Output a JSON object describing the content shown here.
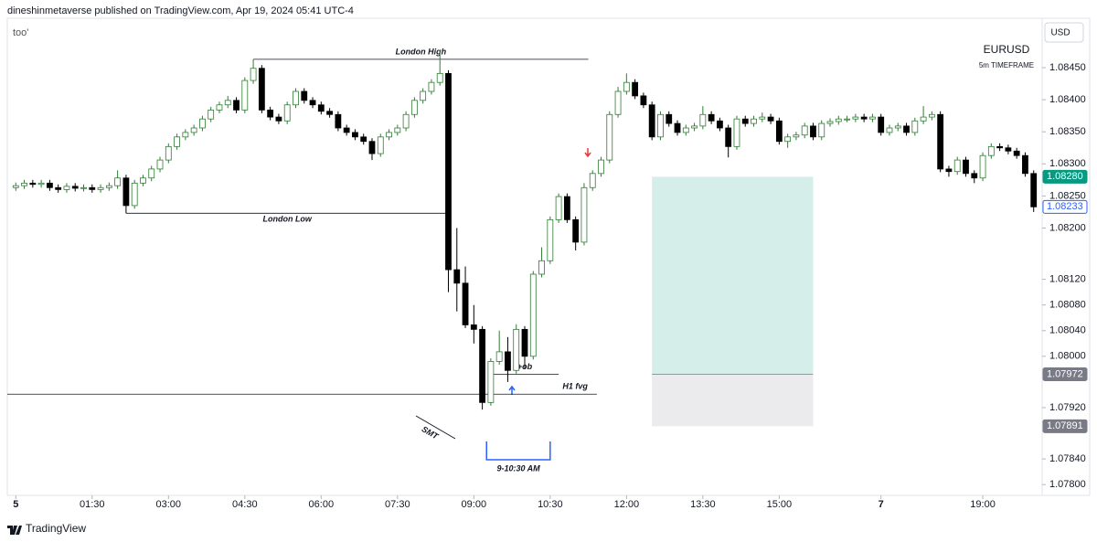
{
  "header": {
    "text": "dineshinmetaverse published on TradingView.com, Apr 19, 2024 05:41 UTC-4"
  },
  "footer": {
    "brand": "TradingView"
  },
  "chart_data": {
    "type": "candlestick",
    "indicator": "too'",
    "symbol": "EURUSD",
    "subtitle": "5m TIMEFRAME",
    "currency": "USD",
    "up_color": "#ffffff",
    "up_border": "#2e7d32",
    "down_color": "#000000",
    "xlim": [
      -10,
      1210
    ],
    "ylim": [
      1.07786,
      1.08527
    ],
    "xticks": [
      {
        "value": 0,
        "label": "5"
      },
      {
        "value": 90,
        "label": "01:30"
      },
      {
        "value": 180,
        "label": "03:00"
      },
      {
        "value": 270,
        "label": "04:30"
      },
      {
        "value": 360,
        "label": "06:00"
      },
      {
        "value": 450,
        "label": "07:30"
      },
      {
        "value": 540,
        "label": "09:00"
      },
      {
        "value": 630,
        "label": "10:30"
      },
      {
        "value": 720,
        "label": "12:00"
      },
      {
        "value": 810,
        "label": "13:30"
      },
      {
        "value": 900,
        "label": "15:00"
      },
      {
        "value": 1020,
        "label": "7"
      },
      {
        "value": 1140,
        "label": "19:00"
      }
    ],
    "yticks": [
      {
        "value": 1.0845,
        "label": "1.08450"
      },
      {
        "value": 1.084,
        "label": "1.08400"
      },
      {
        "value": 1.0835,
        "label": "1.08350"
      },
      {
        "value": 1.083,
        "label": "1.08300"
      },
      {
        "value": 1.0825,
        "label": "1.08250"
      },
      {
        "value": 1.082,
        "label": "1.08200"
      },
      {
        "value": 1.0812,
        "label": "1.08120"
      },
      {
        "value": 1.0808,
        "label": "1.08080"
      },
      {
        "value": 1.0804,
        "label": "1.08040"
      },
      {
        "value": 1.08,
        "label": "1.08000"
      },
      {
        "value": 1.0792,
        "label": "1.07920"
      },
      {
        "value": 1.0784,
        "label": "1.07840"
      },
      {
        "value": 1.078,
        "label": "1.07800"
      }
    ],
    "x": [
      0,
      10,
      20,
      30,
      40,
      50,
      60,
      70,
      80,
      90,
      100,
      110,
      120,
      130,
      140,
      150,
      160,
      170,
      180,
      190,
      200,
      210,
      220,
      230,
      240,
      250,
      260,
      270,
      280,
      290,
      300,
      310,
      320,
      330,
      340,
      350,
      360,
      370,
      380,
      390,
      400,
      410,
      420,
      430,
      440,
      450,
      460,
      470,
      480,
      490,
      500,
      510,
      520,
      530,
      540,
      550,
      560,
      570,
      580,
      590,
      600,
      610,
      620,
      630,
      640,
      650,
      660,
      670,
      680,
      690,
      700,
      710,
      720,
      730,
      740,
      750,
      760,
      770,
      780,
      790,
      800,
      810,
      820,
      830,
      840,
      850,
      860,
      870,
      880,
      890,
      900,
      910,
      920,
      930,
      940,
      950,
      960,
      970,
      980,
      990,
      1000,
      1010,
      1020,
      1030,
      1040,
      1050,
      1060,
      1070,
      1080,
      1090,
      1100,
      1110,
      1120,
      1130,
      1140,
      1150,
      1160,
      1170,
      1180,
      1190,
      1200
    ],
    "open": [
      1.08263,
      1.08266,
      1.0827,
      1.08268,
      1.0827,
      1.08263,
      1.0826,
      1.08265,
      1.08262,
      1.08263,
      1.0826,
      1.08263,
      1.08266,
      1.08278,
      1.08235,
      1.0827,
      1.08278,
      1.08292,
      1.08306,
      1.08327,
      1.08342,
      1.08349,
      1.08356,
      1.0837,
      1.08384,
      1.08392,
      1.08399,
      1.08384,
      1.0843,
      1.08449,
      1.08384,
      1.08373,
      1.08367,
      1.08392,
      1.08413,
      1.08399,
      1.08392,
      1.08382,
      1.08377,
      1.08356,
      1.08349,
      1.08342,
      1.08335,
      1.08316,
      1.08342,
      1.08349,
      1.08356,
      1.08377,
      1.08399,
      1.08413,
      1.08427,
      1.08441,
      1.08135,
      1.08114,
      1.08049,
      1.08042,
      1.07928,
      1.07992,
      1.08007,
      1.07978,
      1.08042,
      1.08,
      1.08128,
      1.08149,
      1.08213,
      1.08249,
      1.08213,
      1.08178,
      1.08263,
      1.08285,
      1.08306,
      1.08377,
      1.08413,
      1.08427,
      1.08406,
      1.08392,
      1.08342,
      1.08377,
      1.08363,
      1.08349,
      1.08356,
      1.08359,
      1.08377,
      1.08367,
      1.08356,
      1.08327,
      1.0837,
      1.08363,
      1.0837,
      1.08373,
      1.08367,
      1.08335,
      1.08342,
      1.08345,
      1.08359,
      1.08342,
      1.08363,
      1.08366,
      1.0837,
      1.0837,
      1.08373,
      1.0837,
      1.08373,
      1.08349,
      1.08356,
      1.08359,
      1.08349,
      1.08367,
      1.08373,
      1.08377,
      1.08292,
      1.08288,
      1.08306,
      1.08285,
      1.08278,
      1.08313,
      1.08327,
      1.08325,
      1.0832,
      1.08313,
      1.08285
    ],
    "high": [
      1.08271,
      1.08275,
      1.08275,
      1.08275,
      1.08275,
      1.08268,
      1.0827,
      1.0827,
      1.08268,
      1.08268,
      1.08268,
      1.08271,
      1.0829,
      1.08283,
      1.08275,
      1.08283,
      1.08297,
      1.08311,
      1.08332,
      1.08347,
      1.08354,
      1.08361,
      1.08375,
      1.08389,
      1.08397,
      1.08406,
      1.08404,
      1.08435,
      1.08463,
      1.08454,
      1.08389,
      1.08378,
      1.08397,
      1.08418,
      1.08418,
      1.08404,
      1.08397,
      1.08387,
      1.08382,
      1.08361,
      1.08354,
      1.08347,
      1.0834,
      1.08347,
      1.08354,
      1.08361,
      1.08382,
      1.08404,
      1.08418,
      1.08432,
      1.08477,
      1.08446,
      1.082,
      1.0814,
      1.0808,
      1.08047,
      1.07997,
      1.0804,
      1.0803,
      1.0805,
      1.08047,
      1.08133,
      1.0817,
      1.08218,
      1.08254,
      1.08254,
      1.08218,
      1.0827,
      1.0829,
      1.08311,
      1.08382,
      1.0842,
      1.08441,
      1.08432,
      1.08411,
      1.08397,
      1.08382,
      1.08382,
      1.08368,
      1.08361,
      1.08364,
      1.0839,
      1.08382,
      1.08372,
      1.08361,
      1.08375,
      1.08375,
      1.08375,
      1.0838,
      1.08378,
      1.08372,
      1.08347,
      1.0835,
      1.08364,
      1.08364,
      1.08368,
      1.08371,
      1.08375,
      1.08375,
      1.08378,
      1.08378,
      1.08378,
      1.08378,
      1.08361,
      1.08364,
      1.08364,
      1.08372,
      1.0839,
      1.08382,
      1.08382,
      1.08297,
      1.08311,
      1.08311,
      1.0829,
      1.08318,
      1.08332,
      1.08332,
      1.0833,
      1.08325,
      1.08318,
      1.0829
    ],
    "low": [
      1.08258,
      1.08261,
      1.08263,
      1.08263,
      1.08258,
      1.08255,
      1.08255,
      1.08257,
      1.08257,
      1.08255,
      1.08255,
      1.08258,
      1.08261,
      1.08223,
      1.0823,
      1.08265,
      1.08273,
      1.08287,
      1.08301,
      1.08322,
      1.08337,
      1.08344,
      1.08351,
      1.08365,
      1.08379,
      1.08387,
      1.08379,
      1.08379,
      1.08425,
      1.08379,
      1.08368,
      1.08362,
      1.08362,
      1.08387,
      1.08394,
      1.08387,
      1.08377,
      1.08372,
      1.08351,
      1.08344,
      1.08337,
      1.0833,
      1.08306,
      1.08311,
      1.08337,
      1.08344,
      1.08351,
      1.08372,
      1.08394,
      1.08408,
      1.08422,
      1.081,
      1.0807,
      1.08044,
      1.0802,
      1.07917,
      1.07923,
      1.07987,
      1.0796,
      1.07973,
      1.0798,
      1.07995,
      1.08123,
      1.08144,
      1.08208,
      1.08208,
      1.08165,
      1.08173,
      1.08258,
      1.0828,
      1.08301,
      1.08372,
      1.08408,
      1.08401,
      1.08387,
      1.08337,
      1.08337,
      1.08358,
      1.08344,
      1.08344,
      1.08351,
      1.08354,
      1.08362,
      1.08351,
      1.0831,
      1.08322,
      1.08358,
      1.08358,
      1.08365,
      1.08362,
      1.0833,
      1.08325,
      1.08337,
      1.0834,
      1.08337,
      1.08337,
      1.08358,
      1.08361,
      1.08365,
      1.08365,
      1.08365,
      1.08365,
      1.08344,
      1.08344,
      1.08351,
      1.08344,
      1.08344,
      1.08362,
      1.08368,
      1.08287,
      1.0828,
      1.08283,
      1.0828,
      1.0827,
      1.08273,
      1.08308,
      1.0832,
      1.08315,
      1.08308,
      1.0828,
      1.08225
    ],
    "close": [
      1.08266,
      1.0827,
      1.08268,
      1.0827,
      1.08263,
      1.0826,
      1.08265,
      1.08262,
      1.08263,
      1.0826,
      1.08263,
      1.08266,
      1.08278,
      1.08235,
      1.0827,
      1.08278,
      1.08292,
      1.08306,
      1.08327,
      1.08342,
      1.08349,
      1.08356,
      1.0837,
      1.08384,
      1.08392,
      1.08399,
      1.08384,
      1.0843,
      1.08449,
      1.08384,
      1.08373,
      1.08367,
      1.08392,
      1.08413,
      1.08399,
      1.08392,
      1.08382,
      1.08377,
      1.08356,
      1.08349,
      1.08342,
      1.08335,
      1.08316,
      1.08342,
      1.08349,
      1.08356,
      1.08377,
      1.08399,
      1.08413,
      1.08427,
      1.08441,
      1.08135,
      1.08114,
      1.08049,
      1.08042,
      1.07928,
      1.07992,
      1.08007,
      1.07978,
      1.08042,
      1.08,
      1.08128,
      1.08149,
      1.08213,
      1.08249,
      1.08213,
      1.08178,
      1.08263,
      1.08285,
      1.08306,
      1.08377,
      1.08413,
      1.08427,
      1.08406,
      1.08392,
      1.08342,
      1.08377,
      1.08363,
      1.08349,
      1.08356,
      1.08359,
      1.08377,
      1.08367,
      1.08356,
      1.08327,
      1.0837,
      1.08363,
      1.0837,
      1.08373,
      1.08367,
      1.08335,
      1.08342,
      1.08345,
      1.08359,
      1.08342,
      1.08363,
      1.08366,
      1.0837,
      1.0837,
      1.08373,
      1.0837,
      1.08373,
      1.08349,
      1.08356,
      1.08359,
      1.08349,
      1.08367,
      1.08373,
      1.08377,
      1.08292,
      1.08288,
      1.08306,
      1.08285,
      1.08278,
      1.08313,
      1.08327,
      1.08325,
      1.0832,
      1.08313,
      1.08285,
      1.08233
    ],
    "levels": [
      {
        "text": "London High",
        "value": 1.08463,
        "x": [
          280,
          675
        ]
      },
      {
        "text": "London Low",
        "value": 1.08223,
        "x": [
          130,
          510
        ]
      },
      {
        "text": "+ob",
        "value": 1.07972,
        "x": [
          560,
          640
        ]
      },
      {
        "text": "H1 fvg",
        "value": 1.07941,
        "x": [
          -10,
          685
        ]
      }
    ],
    "notes": {
      "smt": "SMT",
      "session": {
        "text": "9-10:30 AM",
        "x": [
          555,
          630
        ]
      }
    },
    "position": {
      "x": [
        750,
        940
      ],
      "target": {
        "value": 1.0828,
        "label": "1.08280"
      },
      "entry": {
        "value": 1.07972,
        "label": "1.07972"
      },
      "stop": {
        "value": 1.07891,
        "label": "1.07891"
      }
    },
    "last_price": {
      "value": 1.08233,
      "label": "1.08233"
    }
  }
}
